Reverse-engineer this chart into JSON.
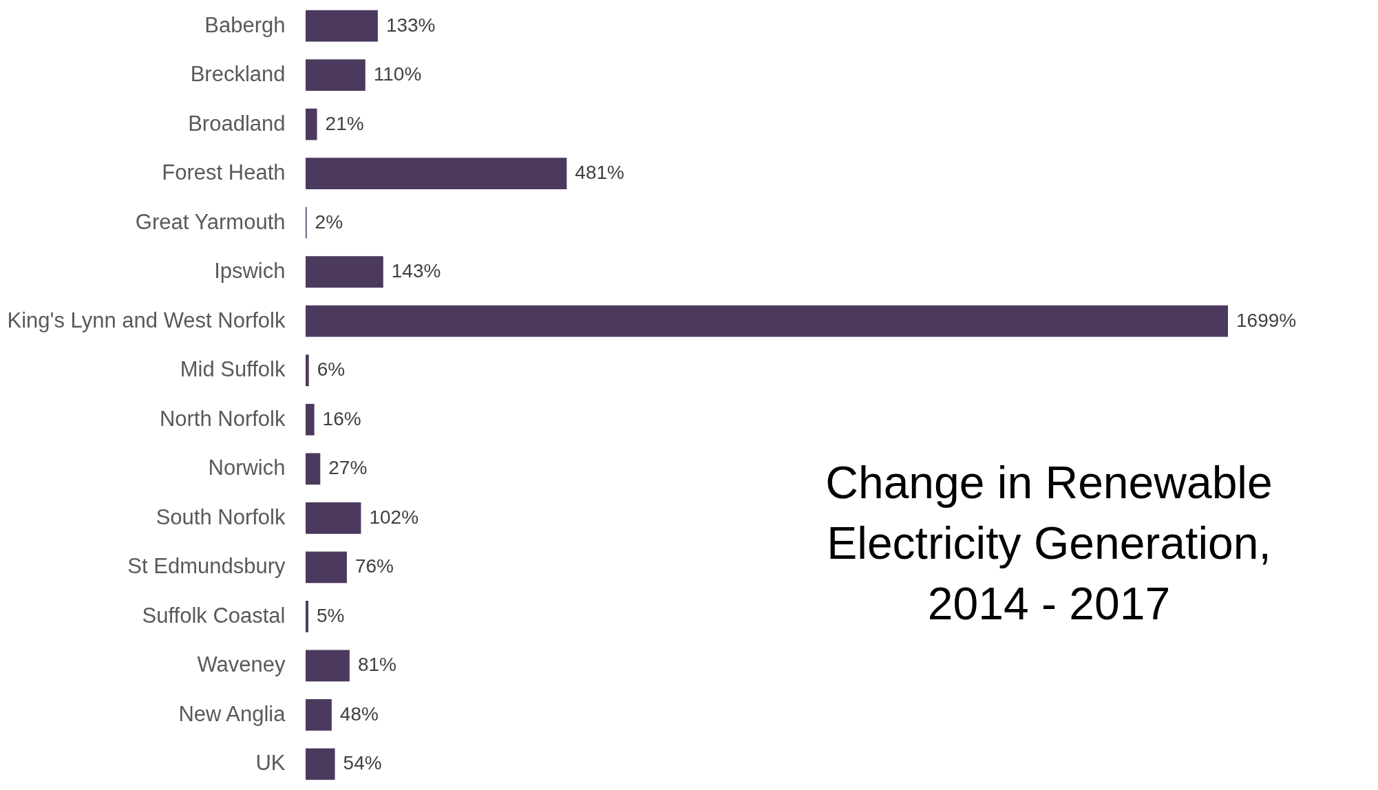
{
  "chart_data": {
    "type": "bar",
    "orientation": "horizontal",
    "title": "Change in Renewable Electricity Generation, 2014 - 2017",
    "categories": [
      "Babergh",
      "Breckland",
      "Broadland",
      "Forest Heath",
      "Great Yarmouth",
      "Ipswich",
      "King's Lynn and West Norfolk",
      "Mid Suffolk",
      "North Norfolk",
      "Norwich",
      "South Norfolk",
      "St Edmundsbury",
      "Suffolk Coastal",
      "Waveney",
      "New Anglia",
      "UK"
    ],
    "values": [
      133,
      110,
      21,
      481,
      2,
      143,
      1699,
      6,
      16,
      27,
      102,
      76,
      5,
      81,
      48,
      54
    ],
    "value_labels": [
      "133%",
      "110%",
      "21%",
      "481%",
      "2%",
      "143%",
      "1699%",
      "6%",
      "16%",
      "27%",
      "102%",
      "76%",
      "5%",
      "81%",
      "48%",
      "54%"
    ],
    "color": "#4b3a5e",
    "grid": false
  }
}
